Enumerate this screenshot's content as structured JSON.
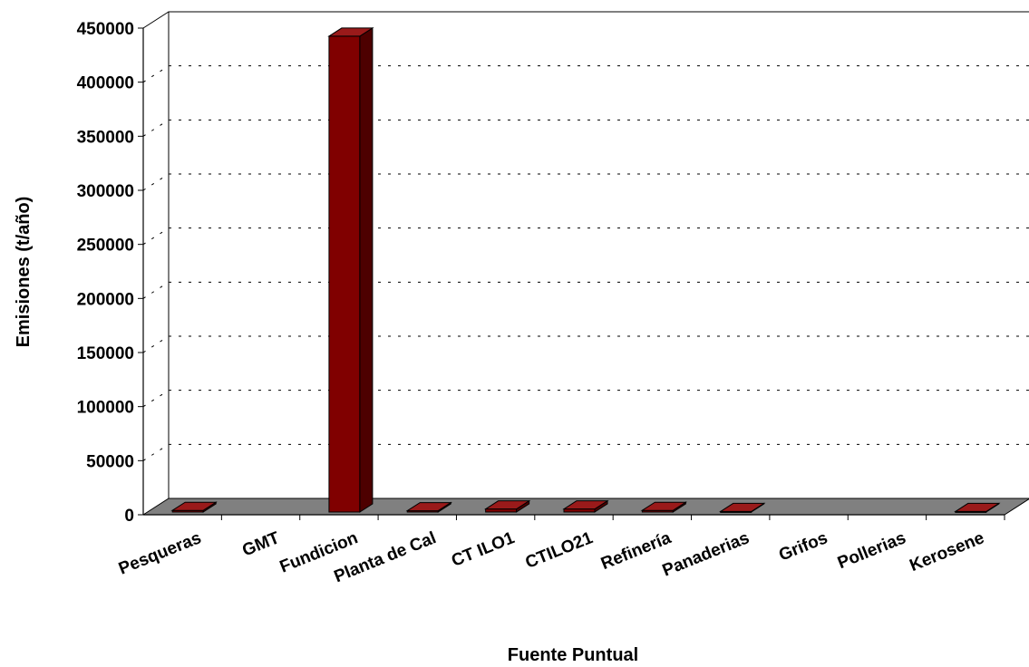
{
  "chart_data": {
    "type": "bar",
    "xlabel": "Fuente Puntual",
    "ylabel": "Emisiones (t/año)",
    "ylim": [
      0,
      450000
    ],
    "yticks": [
      0,
      50000,
      100000,
      150000,
      200000,
      250000,
      300000,
      350000,
      400000,
      450000
    ],
    "categories": [
      "Pesqueras",
      "GMT",
      "Fundicion",
      "Planta de Cal",
      "CT ILO1",
      "CTILO21",
      "Refinería",
      "Panaderias",
      "Grifos",
      "Pollerias",
      "Kerosene"
    ],
    "values": [
      1500,
      0,
      440000,
      1200,
      2800,
      2800,
      1500,
      500,
      0,
      0,
      500
    ],
    "grid": true,
    "bar_color": "#800000",
    "floor_color": "#808080"
  }
}
